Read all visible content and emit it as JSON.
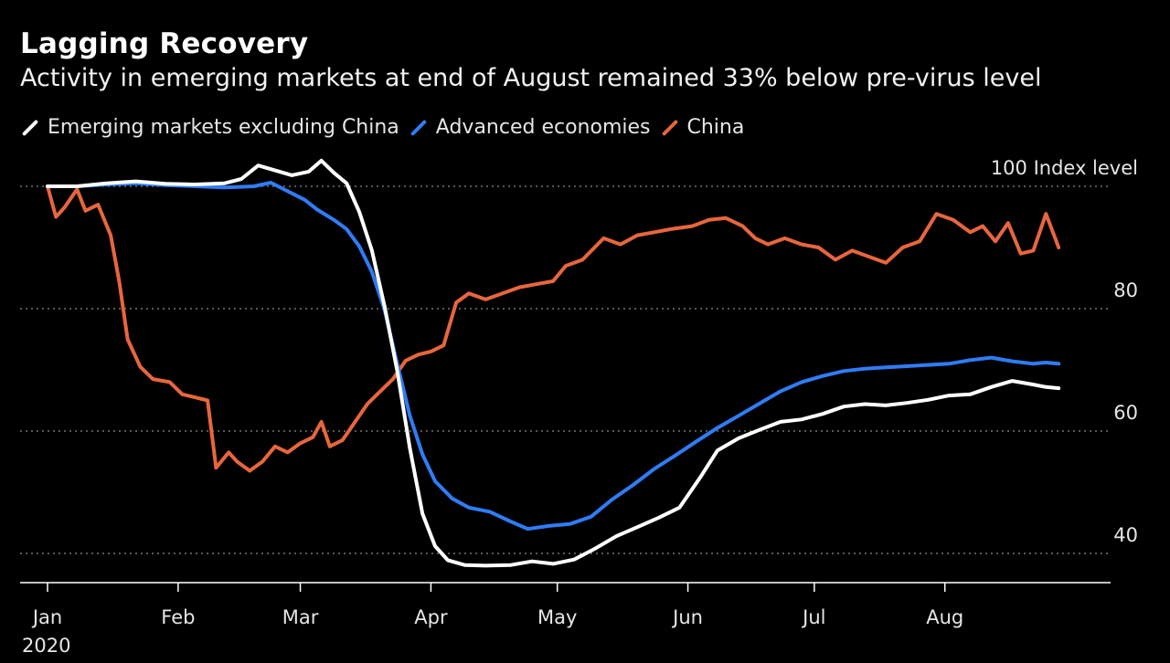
{
  "title": "Lagging Recovery",
  "subtitle": "Activity in emerging markets at end of August remained 33% below pre-virus level",
  "colors": {
    "background": "#000000",
    "grid": "#8a8a8a",
    "axis": "#ffffff"
  },
  "chart_data": {
    "type": "line",
    "title": "Lagging Recovery",
    "subtitle": "Activity in emerging markets at end of August remained 33% below pre-virus level",
    "y_unit_label": "Index level",
    "y_ticks": [
      100,
      80,
      60,
      40
    ],
    "ylim": [
      35,
      105
    ],
    "x_tick_labels": [
      "Jan",
      "Feb",
      "Mar",
      "Apr",
      "May",
      "Jun",
      "Jul",
      "Aug"
    ],
    "x_tick_dates": [
      "2020-01-01",
      "2020-02-01",
      "2020-03-01",
      "2020-04-01",
      "2020-05-01",
      "2020-06-01",
      "2020-07-01",
      "2020-08-01"
    ],
    "x_year_label": "2020",
    "xlim": [
      "2020-01-01",
      "2020-08-31"
    ],
    "grid": true,
    "legend_position": "top-left",
    "series": [
      {
        "name": "Emerging markets excluding China",
        "color": "#ffffff",
        "points": [
          [
            "2020-01-01",
            100
          ],
          [
            "2020-01-08",
            100
          ],
          [
            "2020-01-15",
            100.5
          ],
          [
            "2020-01-22",
            100.8
          ],
          [
            "2020-01-29",
            100.4
          ],
          [
            "2020-02-05",
            100.3
          ],
          [
            "2020-02-12",
            100.5
          ],
          [
            "2020-02-16",
            101.2
          ],
          [
            "2020-02-20",
            103.4
          ],
          [
            "2020-02-24",
            102.6
          ],
          [
            "2020-02-28",
            101.8
          ],
          [
            "2020-03-03",
            102.4
          ],
          [
            "2020-03-06",
            104.2
          ],
          [
            "2020-03-09",
            102.2
          ],
          [
            "2020-03-12",
            100.5
          ],
          [
            "2020-03-15",
            95.8
          ],
          [
            "2020-03-18",
            89.5
          ],
          [
            "2020-03-21",
            80.4
          ],
          [
            "2020-03-24",
            69.8
          ],
          [
            "2020-03-27",
            57.2
          ],
          [
            "2020-03-30",
            46.5
          ],
          [
            "2020-04-02",
            41.2
          ],
          [
            "2020-04-05",
            38.9
          ],
          [
            "2020-04-09",
            38.1
          ],
          [
            "2020-04-14",
            38.0
          ],
          [
            "2020-04-20",
            38.1
          ],
          [
            "2020-04-25",
            38.7
          ],
          [
            "2020-04-30",
            38.3
          ],
          [
            "2020-05-05",
            39.0
          ],
          [
            "2020-05-10",
            40.8
          ],
          [
            "2020-05-15",
            42.8
          ],
          [
            "2020-05-20",
            44.3
          ],
          [
            "2020-05-25",
            45.8
          ],
          [
            "2020-05-30",
            47.5
          ],
          [
            "2020-06-04",
            52.5
          ],
          [
            "2020-06-08",
            56.8
          ],
          [
            "2020-06-13",
            58.8
          ],
          [
            "2020-06-18",
            60.2
          ],
          [
            "2020-06-23",
            61.5
          ],
          [
            "2020-06-28",
            61.9
          ],
          [
            "2020-07-03",
            62.8
          ],
          [
            "2020-07-08",
            64.0
          ],
          [
            "2020-07-13",
            64.4
          ],
          [
            "2020-07-18",
            64.2
          ],
          [
            "2020-07-23",
            64.6
          ],
          [
            "2020-07-28",
            65.1
          ],
          [
            "2020-08-02",
            65.8
          ],
          [
            "2020-08-07",
            66.0
          ],
          [
            "2020-08-12",
            67.2
          ],
          [
            "2020-08-17",
            68.2
          ],
          [
            "2020-08-22",
            67.6
          ],
          [
            "2020-08-25",
            67.2
          ],
          [
            "2020-08-28",
            67.0
          ]
        ]
      },
      {
        "name": "Advanced economies",
        "color": "#2f7cf6",
        "points": [
          [
            "2020-01-01",
            100
          ],
          [
            "2020-01-08",
            100
          ],
          [
            "2020-01-15",
            100.3
          ],
          [
            "2020-01-22",
            100.5
          ],
          [
            "2020-01-29",
            100.2
          ],
          [
            "2020-02-05",
            100.0
          ],
          [
            "2020-02-12",
            99.8
          ],
          [
            "2020-02-19",
            100.0
          ],
          [
            "2020-02-23",
            100.6
          ],
          [
            "2020-02-27",
            99.2
          ],
          [
            "2020-03-02",
            97.8
          ],
          [
            "2020-03-05",
            96.2
          ],
          [
            "2020-03-09",
            94.5
          ],
          [
            "2020-03-12",
            93.0
          ],
          [
            "2020-03-15",
            90.2
          ],
          [
            "2020-03-18",
            86.0
          ],
          [
            "2020-03-21",
            79.8
          ],
          [
            "2020-03-24",
            71.0
          ],
          [
            "2020-03-27",
            62.5
          ],
          [
            "2020-03-30",
            56.2
          ],
          [
            "2020-04-02",
            51.8
          ],
          [
            "2020-04-06",
            49.0
          ],
          [
            "2020-04-10",
            47.5
          ],
          [
            "2020-04-15",
            46.8
          ],
          [
            "2020-04-20",
            45.2
          ],
          [
            "2020-04-24",
            44.0
          ],
          [
            "2020-04-29",
            44.5
          ],
          [
            "2020-05-04",
            44.8
          ],
          [
            "2020-05-09",
            46.0
          ],
          [
            "2020-05-14",
            48.8
          ],
          [
            "2020-05-19",
            51.2
          ],
          [
            "2020-05-24",
            53.8
          ],
          [
            "2020-05-29",
            56.0
          ],
          [
            "2020-06-03",
            58.3
          ],
          [
            "2020-06-08",
            60.5
          ],
          [
            "2020-06-13",
            62.5
          ],
          [
            "2020-06-18",
            64.5
          ],
          [
            "2020-06-23",
            66.5
          ],
          [
            "2020-06-28",
            68.0
          ],
          [
            "2020-07-03",
            69.0
          ],
          [
            "2020-07-08",
            69.8
          ],
          [
            "2020-07-13",
            70.2
          ],
          [
            "2020-07-18",
            70.4
          ],
          [
            "2020-07-23",
            70.6
          ],
          [
            "2020-07-28",
            70.8
          ],
          [
            "2020-08-02",
            71.0
          ],
          [
            "2020-08-07",
            71.6
          ],
          [
            "2020-08-12",
            72.0
          ],
          [
            "2020-08-17",
            71.4
          ],
          [
            "2020-08-22",
            71.0
          ],
          [
            "2020-08-25",
            71.2
          ],
          [
            "2020-08-28",
            71.0
          ]
        ]
      },
      {
        "name": "China",
        "color": "#e8663d",
        "points": [
          [
            "2020-01-01",
            100
          ],
          [
            "2020-01-03",
            95.0
          ],
          [
            "2020-01-05",
            96.5
          ],
          [
            "2020-01-08",
            99.5
          ],
          [
            "2020-01-10",
            96.0
          ],
          [
            "2020-01-13",
            97.0
          ],
          [
            "2020-01-16",
            92.0
          ],
          [
            "2020-01-18",
            84.5
          ],
          [
            "2020-01-20",
            75.0
          ],
          [
            "2020-01-23",
            70.5
          ],
          [
            "2020-01-26",
            68.5
          ],
          [
            "2020-01-30",
            68.0
          ],
          [
            "2020-02-02",
            66.0
          ],
          [
            "2020-02-05",
            65.5
          ],
          [
            "2020-02-08",
            65.0
          ],
          [
            "2020-02-10",
            54.0
          ],
          [
            "2020-02-13",
            56.5
          ],
          [
            "2020-02-15",
            55.0
          ],
          [
            "2020-02-18",
            53.5
          ],
          [
            "2020-02-21",
            55.0
          ],
          [
            "2020-02-24",
            57.5
          ],
          [
            "2020-02-27",
            56.5
          ],
          [
            "2020-03-01",
            58.0
          ],
          [
            "2020-03-04",
            59.0
          ],
          [
            "2020-03-06",
            61.5
          ],
          [
            "2020-03-08",
            57.5
          ],
          [
            "2020-03-11",
            58.5
          ],
          [
            "2020-03-14",
            61.5
          ],
          [
            "2020-03-17",
            64.5
          ],
          [
            "2020-03-20",
            66.5
          ],
          [
            "2020-03-23",
            68.5
          ],
          [
            "2020-03-26",
            71.5
          ],
          [
            "2020-03-29",
            72.5
          ],
          [
            "2020-04-01",
            73.0
          ],
          [
            "2020-04-04",
            74.0
          ],
          [
            "2020-04-07",
            81.0
          ],
          [
            "2020-04-10",
            82.5
          ],
          [
            "2020-04-14",
            81.5
          ],
          [
            "2020-04-18",
            82.5
          ],
          [
            "2020-04-22",
            83.5
          ],
          [
            "2020-04-26",
            84.0
          ],
          [
            "2020-04-30",
            84.5
          ],
          [
            "2020-05-03",
            87.0
          ],
          [
            "2020-05-07",
            88.0
          ],
          [
            "2020-05-12",
            91.5
          ],
          [
            "2020-05-16",
            90.5
          ],
          [
            "2020-05-20",
            92.0
          ],
          [
            "2020-05-24",
            92.5
          ],
          [
            "2020-05-28",
            93.0
          ],
          [
            "2020-06-02",
            93.5
          ],
          [
            "2020-06-06",
            94.5
          ],
          [
            "2020-06-10",
            94.8
          ],
          [
            "2020-06-14",
            93.5
          ],
          [
            "2020-06-17",
            91.5
          ],
          [
            "2020-06-20",
            90.5
          ],
          [
            "2020-06-24",
            91.5
          ],
          [
            "2020-06-28",
            90.5
          ],
          [
            "2020-07-02",
            90.0
          ],
          [
            "2020-07-06",
            88.0
          ],
          [
            "2020-07-10",
            89.5
          ],
          [
            "2020-07-14",
            88.5
          ],
          [
            "2020-07-18",
            87.5
          ],
          [
            "2020-07-22",
            90.0
          ],
          [
            "2020-07-26",
            91.0
          ],
          [
            "2020-07-30",
            95.5
          ],
          [
            "2020-08-03",
            94.5
          ],
          [
            "2020-08-07",
            92.5
          ],
          [
            "2020-08-10",
            93.5
          ],
          [
            "2020-08-13",
            91.0
          ],
          [
            "2020-08-16",
            94.0
          ],
          [
            "2020-08-19",
            89.0
          ],
          [
            "2020-08-22",
            89.5
          ],
          [
            "2020-08-25",
            95.5
          ],
          [
            "2020-08-28",
            90.0
          ]
        ]
      }
    ]
  }
}
